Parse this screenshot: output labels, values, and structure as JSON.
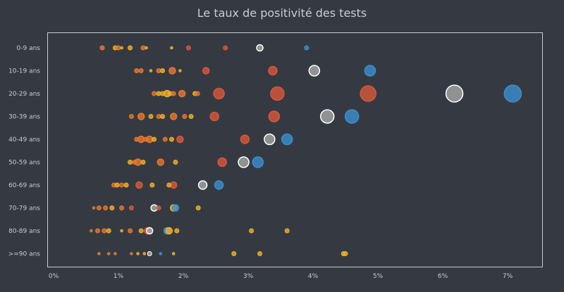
{
  "chart_data": {
    "type": "scatter",
    "title": "Le taux de positivité des tests",
    "xlabel": "",
    "ylabel": "",
    "xlim": [
      0,
      7.6
    ],
    "x_ticks": [
      "0%",
      "1%",
      "2%",
      "3%",
      "4%",
      "5%",
      "6%",
      "7%"
    ],
    "categories": [
      "0-9 ans",
      "10-19 ans",
      "20-29 ans",
      "30-39 ans",
      "40-49 ans",
      "50-59 ans",
      "60-69 ans",
      "70-79 ans",
      "80-89 ans",
      ">=90 ans"
    ],
    "grid": false,
    "colors": {
      "yellow": "#f0b027",
      "orange": "#e8772e",
      "red": "#d9573b",
      "white": "#a8a8a8",
      "blue": "#3b8fd0"
    },
    "points": [
      {
        "cat": 0,
        "x": 0.75,
        "s": 1,
        "c": "orange"
      },
      {
        "cat": 0,
        "x": 0.95,
        "s": 1,
        "c": "yellow"
      },
      {
        "cat": 0,
        "x": 1.0,
        "s": 1,
        "c": "orange"
      },
      {
        "cat": 0,
        "x": 1.05,
        "s": 0,
        "c": "yellow"
      },
      {
        "cat": 0,
        "x": 1.18,
        "s": 1,
        "c": "yellow"
      },
      {
        "cat": 0,
        "x": 1.38,
        "s": 1,
        "c": "orange"
      },
      {
        "cat": 0,
        "x": 1.43,
        "s": 0,
        "c": "yellow"
      },
      {
        "cat": 0,
        "x": 1.82,
        "s": 0,
        "c": "yellow"
      },
      {
        "cat": 0,
        "x": 2.08,
        "s": 1,
        "c": "red"
      },
      {
        "cat": 0,
        "x": 2.65,
        "s": 1,
        "c": "red"
      },
      {
        "cat": 0,
        "x": 3.18,
        "s": 2,
        "c": "white"
      },
      {
        "cat": 0,
        "x": 3.9,
        "s": 1,
        "c": "blue"
      },
      {
        "cat": 1,
        "x": 1.28,
        "s": 1,
        "c": "orange"
      },
      {
        "cat": 1,
        "x": 1.35,
        "s": 1,
        "c": "orange"
      },
      {
        "cat": 1,
        "x": 1.5,
        "s": 0,
        "c": "yellow"
      },
      {
        "cat": 1,
        "x": 1.62,
        "s": 1,
        "c": "orange"
      },
      {
        "cat": 1,
        "x": 1.68,
        "s": 1,
        "c": "yellow"
      },
      {
        "cat": 1,
        "x": 1.83,
        "s": 2,
        "c": "orange"
      },
      {
        "cat": 1,
        "x": 1.95,
        "s": 0,
        "c": "yellow"
      },
      {
        "cat": 1,
        "x": 2.35,
        "s": 2,
        "c": "red"
      },
      {
        "cat": 1,
        "x": 3.38,
        "s": 3,
        "c": "red"
      },
      {
        "cat": 1,
        "x": 4.02,
        "s": 4,
        "c": "white"
      },
      {
        "cat": 1,
        "x": 4.88,
        "s": 4,
        "c": "blue"
      },
      {
        "cat": 2,
        "x": 1.55,
        "s": 1,
        "c": "orange"
      },
      {
        "cat": 2,
        "x": 1.62,
        "s": 1,
        "c": "yellow"
      },
      {
        "cat": 2,
        "x": 1.68,
        "s": 1,
        "c": "yellow"
      },
      {
        "cat": 2,
        "x": 1.75,
        "s": 2,
        "c": "yellow"
      },
      {
        "cat": 2,
        "x": 1.8,
        "s": 1,
        "c": "yellow"
      },
      {
        "cat": 2,
        "x": 1.85,
        "s": 1,
        "c": "orange"
      },
      {
        "cat": 2,
        "x": 1.98,
        "s": 2,
        "c": "orange"
      },
      {
        "cat": 2,
        "x": 2.18,
        "s": 1,
        "c": "yellow"
      },
      {
        "cat": 2,
        "x": 2.22,
        "s": 1,
        "c": "orange"
      },
      {
        "cat": 2,
        "x": 2.55,
        "s": 4,
        "c": "red"
      },
      {
        "cat": 2,
        "x": 3.45,
        "s": 5,
        "c": "red"
      },
      {
        "cat": 2,
        "x": 4.85,
        "s": 6,
        "c": "red"
      },
      {
        "cat": 2,
        "x": 6.18,
        "s": 7,
        "c": "white"
      },
      {
        "cat": 2,
        "x": 7.08,
        "s": 7,
        "c": "blue"
      },
      {
        "cat": 3,
        "x": 1.2,
        "s": 1,
        "c": "orange"
      },
      {
        "cat": 3,
        "x": 1.35,
        "s": 2,
        "c": "orange"
      },
      {
        "cat": 3,
        "x": 1.5,
        "s": 1,
        "c": "yellow"
      },
      {
        "cat": 3,
        "x": 1.62,
        "s": 1,
        "c": "orange"
      },
      {
        "cat": 3,
        "x": 1.68,
        "s": 1,
        "c": "yellow"
      },
      {
        "cat": 3,
        "x": 1.85,
        "s": 2,
        "c": "orange"
      },
      {
        "cat": 3,
        "x": 2.02,
        "s": 1,
        "c": "orange"
      },
      {
        "cat": 3,
        "x": 2.12,
        "s": 1,
        "c": "yellow"
      },
      {
        "cat": 3,
        "x": 2.48,
        "s": 3,
        "c": "red"
      },
      {
        "cat": 3,
        "x": 3.4,
        "s": 4,
        "c": "red"
      },
      {
        "cat": 3,
        "x": 4.22,
        "s": 5,
        "c": "white"
      },
      {
        "cat": 3,
        "x": 4.6,
        "s": 5,
        "c": "blue"
      },
      {
        "cat": 4,
        "x": 1.28,
        "s": 1,
        "c": "orange"
      },
      {
        "cat": 4,
        "x": 1.35,
        "s": 2,
        "c": "orange"
      },
      {
        "cat": 4,
        "x": 1.42,
        "s": 1,
        "c": "orange"
      },
      {
        "cat": 4,
        "x": 1.48,
        "s": 2,
        "c": "orange"
      },
      {
        "cat": 4,
        "x": 1.55,
        "s": 1,
        "c": "yellow"
      },
      {
        "cat": 4,
        "x": 1.72,
        "s": 1,
        "c": "orange"
      },
      {
        "cat": 4,
        "x": 1.82,
        "s": 1,
        "c": "yellow"
      },
      {
        "cat": 4,
        "x": 1.95,
        "s": 2,
        "c": "red"
      },
      {
        "cat": 4,
        "x": 2.95,
        "s": 3,
        "c": "red"
      },
      {
        "cat": 4,
        "x": 3.33,
        "s": 4,
        "c": "white"
      },
      {
        "cat": 4,
        "x": 3.6,
        "s": 4,
        "c": "blue"
      },
      {
        "cat": 5,
        "x": 1.18,
        "s": 1,
        "c": "yellow"
      },
      {
        "cat": 5,
        "x": 1.25,
        "s": 1,
        "c": "orange"
      },
      {
        "cat": 5,
        "x": 1.3,
        "s": 2,
        "c": "orange"
      },
      {
        "cat": 5,
        "x": 1.38,
        "s": 1,
        "c": "yellow"
      },
      {
        "cat": 5,
        "x": 1.65,
        "s": 2,
        "c": "orange"
      },
      {
        "cat": 5,
        "x": 1.88,
        "s": 1,
        "c": "yellow"
      },
      {
        "cat": 5,
        "x": 2.6,
        "s": 3,
        "c": "red"
      },
      {
        "cat": 5,
        "x": 2.93,
        "s": 4,
        "c": "white"
      },
      {
        "cat": 5,
        "x": 3.15,
        "s": 4,
        "c": "blue"
      },
      {
        "cat": 6,
        "x": 0.93,
        "s": 1,
        "c": "orange"
      },
      {
        "cat": 6,
        "x": 0.98,
        "s": 1,
        "c": "yellow"
      },
      {
        "cat": 6,
        "x": 1.05,
        "s": 1,
        "c": "orange"
      },
      {
        "cat": 6,
        "x": 1.12,
        "s": 1,
        "c": "yellow"
      },
      {
        "cat": 6,
        "x": 1.32,
        "s": 2,
        "c": "red"
      },
      {
        "cat": 6,
        "x": 1.52,
        "s": 1,
        "c": "yellow"
      },
      {
        "cat": 6,
        "x": 1.78,
        "s": 1,
        "c": "yellow"
      },
      {
        "cat": 6,
        "x": 1.85,
        "s": 2,
        "c": "red"
      },
      {
        "cat": 6,
        "x": 2.3,
        "s": 3,
        "c": "white"
      },
      {
        "cat": 6,
        "x": 2.55,
        "s": 3,
        "c": "blue"
      },
      {
        "cat": 7,
        "x": 0.62,
        "s": 0,
        "c": "orange"
      },
      {
        "cat": 7,
        "x": 0.7,
        "s": 1,
        "c": "orange"
      },
      {
        "cat": 7,
        "x": 0.8,
        "s": 1,
        "c": "orange"
      },
      {
        "cat": 7,
        "x": 0.9,
        "s": 1,
        "c": "yellow"
      },
      {
        "cat": 7,
        "x": 1.05,
        "s": 1,
        "c": "orange"
      },
      {
        "cat": 7,
        "x": 1.2,
        "s": 1,
        "c": "red"
      },
      {
        "cat": 7,
        "x": 1.55,
        "s": 2,
        "c": "white"
      },
      {
        "cat": 7,
        "x": 1.62,
        "s": 1,
        "c": "red"
      },
      {
        "cat": 7,
        "x": 1.85,
        "s": 2,
        "c": "yellow"
      },
      {
        "cat": 7,
        "x": 1.88,
        "s": 2,
        "c": "blue"
      },
      {
        "cat": 7,
        "x": 2.23,
        "s": 1,
        "c": "yellow"
      },
      {
        "cat": 8,
        "x": 0.58,
        "s": 0,
        "c": "orange"
      },
      {
        "cat": 8,
        "x": 0.68,
        "s": 1,
        "c": "orange"
      },
      {
        "cat": 8,
        "x": 0.78,
        "s": 1,
        "c": "orange"
      },
      {
        "cat": 8,
        "x": 0.85,
        "s": 1,
        "c": "yellow"
      },
      {
        "cat": 8,
        "x": 1.05,
        "s": 0,
        "c": "yellow"
      },
      {
        "cat": 8,
        "x": 1.18,
        "s": 1,
        "c": "orange"
      },
      {
        "cat": 8,
        "x": 1.35,
        "s": 1,
        "c": "yellow"
      },
      {
        "cat": 8,
        "x": 1.45,
        "s": 2,
        "c": "red"
      },
      {
        "cat": 8,
        "x": 1.48,
        "s": 2,
        "c": "white"
      },
      {
        "cat": 8,
        "x": 1.75,
        "s": 2,
        "c": "blue"
      },
      {
        "cat": 8,
        "x": 1.78,
        "s": 2,
        "c": "yellow"
      },
      {
        "cat": 8,
        "x": 1.9,
        "s": 1,
        "c": "yellow"
      },
      {
        "cat": 8,
        "x": 3.05,
        "s": 1,
        "c": "yellow"
      },
      {
        "cat": 8,
        "x": 3.6,
        "s": 1,
        "c": "yellow"
      },
      {
        "cat": 9,
        "x": 0.7,
        "s": 0,
        "c": "orange"
      },
      {
        "cat": 9,
        "x": 0.85,
        "s": 0,
        "c": "orange"
      },
      {
        "cat": 9,
        "x": 0.95,
        "s": 0,
        "c": "orange"
      },
      {
        "cat": 9,
        "x": 1.2,
        "s": 0,
        "c": "orange"
      },
      {
        "cat": 9,
        "x": 1.3,
        "s": 0,
        "c": "yellow"
      },
      {
        "cat": 9,
        "x": 1.4,
        "s": 0,
        "c": "yellow"
      },
      {
        "cat": 9,
        "x": 1.48,
        "s": 1,
        "c": "white"
      },
      {
        "cat": 9,
        "x": 1.65,
        "s": 0,
        "c": "blue"
      },
      {
        "cat": 9,
        "x": 1.85,
        "s": 0,
        "c": "yellow"
      },
      {
        "cat": 9,
        "x": 2.78,
        "s": 1,
        "c": "yellow"
      },
      {
        "cat": 9,
        "x": 3.18,
        "s": 1,
        "c": "yellow"
      },
      {
        "cat": 9,
        "x": 4.47,
        "s": 1,
        "c": "yellow"
      },
      {
        "cat": 9,
        "x": 4.5,
        "s": 1,
        "c": "yellow"
      }
    ]
  }
}
